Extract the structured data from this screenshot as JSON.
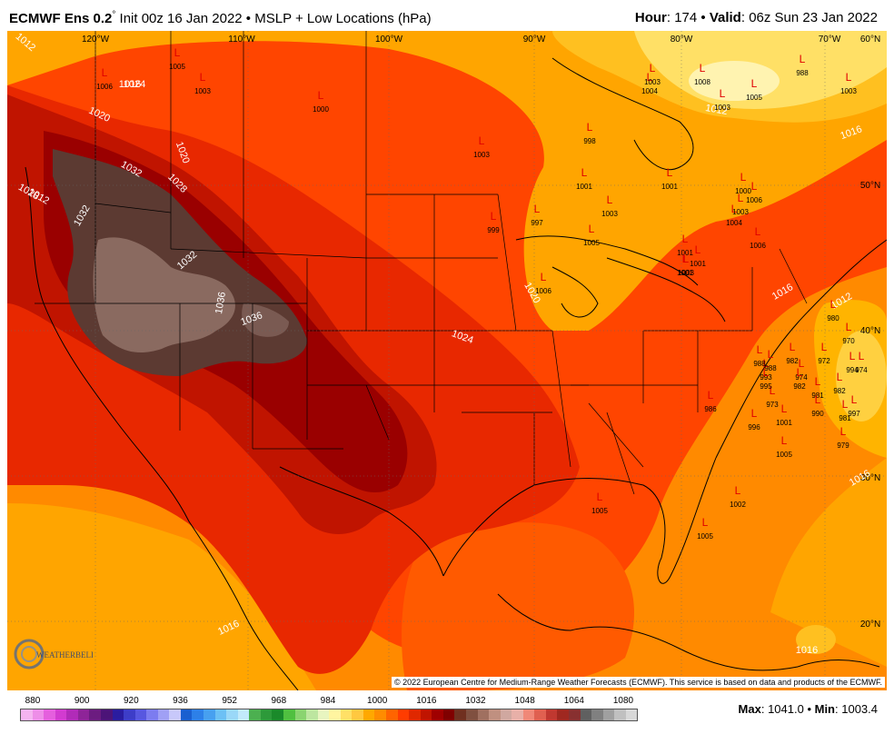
{
  "header": {
    "model": "ECMWF Ens 0.2",
    "degree": "°",
    "init": "Init 00z 16 Jan 2022",
    "field": "MSLP + Low Locations (hPa)",
    "hour_label": "Hour",
    "hour": "174",
    "valid_label": "Valid",
    "valid": "06z Sun 23 Jan 2022"
  },
  "map": {
    "lon_labels": [
      "120°W",
      "110°W",
      "100°W",
      "90°W",
      "80°W",
      "70°W",
      "60°N"
    ],
    "lat_labels": [
      "50°N",
      "40°N",
      "30°N",
      "20°N"
    ],
    "isobar_labels": [
      "1012",
      "1016",
      "1020",
      "1020",
      "1024",
      "1028",
      "1028",
      "1032",
      "1032",
      "1032",
      "1036",
      "1036",
      "1020",
      "1024",
      "1012",
      "1016",
      "1016",
      "1012",
      "1016",
      "1016",
      "1016",
      "1012"
    ],
    "lows": [
      "1006",
      "1005",
      "1003",
      "1000",
      "1003",
      "998",
      "1001",
      "1003",
      "1005",
      "997",
      "999",
      "1006",
      "1001",
      "1003",
      "1004",
      "1003",
      "1008",
      "1003",
      "1005",
      "988",
      "1003",
      "1001",
      "1000",
      "1006",
      "1004",
      "1003",
      "1006",
      "1001",
      "1001",
      "980",
      "970",
      "986",
      "996",
      "973",
      "1001",
      "1005",
      "982",
      "972",
      "974",
      "994",
      "974",
      "981",
      "982",
      "990",
      "997",
      "981",
      "979",
      "1002",
      "1005",
      "1005",
      "993",
      "995",
      "988",
      "988",
      "982"
    ],
    "copyright": "© 2022 European Centre for Medium-Range Weather Forecasts (ECMWF). This service is based on data and products of the ECMWF."
  },
  "logo": {
    "text": "WEATHERBELL"
  },
  "legend": {
    "ticks": [
      "880",
      "900",
      "920",
      "936",
      "952",
      "968",
      "984",
      "1000",
      "1016",
      "1032",
      "1048",
      "1064",
      "1080"
    ],
    "colors": [
      "#f5b4f0",
      "#ee8ee8",
      "#e55fde",
      "#d23bd0",
      "#b12bb8",
      "#8e2498",
      "#6c1c80",
      "#4c1478",
      "#2a1ca0",
      "#3d3dc8",
      "#5757e0",
      "#7c7cf0",
      "#a0a0f5",
      "#c8c8fa",
      "#1a5fd0",
      "#2d80e8",
      "#47a0f0",
      "#6cc0f5",
      "#9ad8f8",
      "#c2eafa",
      "#4cb050",
      "#2d9a3a",
      "#1a8a2a",
      "#50c040",
      "#8ad470",
      "#bde6a0",
      "#e8f5c0",
      "#fff5a0",
      "#ffe066",
      "#ffc840",
      "#ffa800",
      "#ff8c00",
      "#ff6400",
      "#ff3c00",
      "#e02800",
      "#c01400",
      "#a00000",
      "#800000",
      "#703020",
      "#805040",
      "#a07060",
      "#c09080",
      "#d0a8a0",
      "#e8b0a8",
      "#f08878",
      "#e06050",
      "#c03830",
      "#a02820",
      "#883030",
      "#606060",
      "#808080",
      "#a0a0a0",
      "#c0c0c0",
      "#d8d8d8"
    ]
  },
  "stats": {
    "max_label": "Max",
    "max": "1041.0",
    "min_label": "Min",
    "min": "1003.4"
  }
}
